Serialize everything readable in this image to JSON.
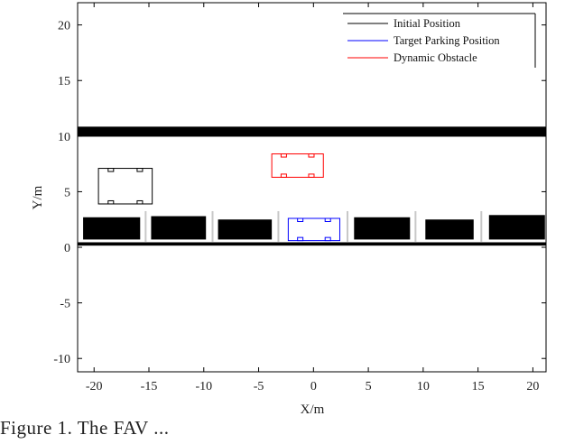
{
  "chart_data": {
    "type": "diagram-plot",
    "title": "",
    "xlabel": "X/m",
    "ylabel": "Y/m",
    "xlim": [
      -21.5,
      21.2
    ],
    "ylim": [
      -11.2,
      22
    ],
    "xticks": [
      -20,
      -15,
      -10,
      -5,
      0,
      5,
      10,
      15,
      20
    ],
    "yticks": [
      -10,
      -5,
      0,
      5,
      10,
      15,
      20
    ],
    "grid": false,
    "legend": {
      "placement": "top-right",
      "entries": [
        {
          "label": "Initial Position",
          "color": "#000000"
        },
        {
          "label": "Target Parking Position",
          "color": "#0000ff"
        },
        {
          "label": "Dynamic Obstacle",
          "color": "#ff0000"
        }
      ]
    },
    "road_boundaries": [
      {
        "name": "upper-road-boundary",
        "x": [
          -21.5,
          21.2
        ],
        "y_center": 10.4,
        "thickness": 0.9
      },
      {
        "name": "lower-road-boundary",
        "x": [
          -21.5,
          21.2
        ],
        "y_center": 0.3,
        "thickness": 0.3
      }
    ],
    "parked_cars": [
      {
        "x0": -21,
        "x1": -15.8,
        "y0": 0.7,
        "y1": 2.7
      },
      {
        "x0": -14.8,
        "x1": -9.8,
        "y0": 0.7,
        "y1": 2.8
      },
      {
        "x0": -8.7,
        "x1": -3.8,
        "y0": 0.7,
        "y1": 2.5
      },
      {
        "x0": 3.7,
        "x1": 8.8,
        "y0": 0.7,
        "y1": 2.7
      },
      {
        "x0": 10.2,
        "x1": 14.6,
        "y0": 0.7,
        "y1": 2.5
      },
      {
        "x0": 16,
        "x1": 21.1,
        "y0": 0.7,
        "y1": 2.9
      }
    ],
    "slot_dividers_x": [
      -15.3,
      -9.2,
      -3.2,
      3.1,
      9.3,
      15.3
    ],
    "slot_divider_y": [
      0.5,
      3.3
    ],
    "vehicles": [
      {
        "name": "initial-position",
        "color": "#000000",
        "x0": -19.6,
        "x1": -14.7,
        "y0": 3.9,
        "y1": 7.1
      },
      {
        "name": "target-parking-position",
        "color": "#0000ff",
        "x0": -2.3,
        "x1": 2.4,
        "y0": 0.6,
        "y1": 2.6
      },
      {
        "name": "dynamic-obstacle",
        "color": "#ff0000",
        "x0": -3.8,
        "x1": 0.9,
        "y0": 6.3,
        "y1": 8.4
      }
    ]
  },
  "caption": "Figure 1.   The FAV ..."
}
